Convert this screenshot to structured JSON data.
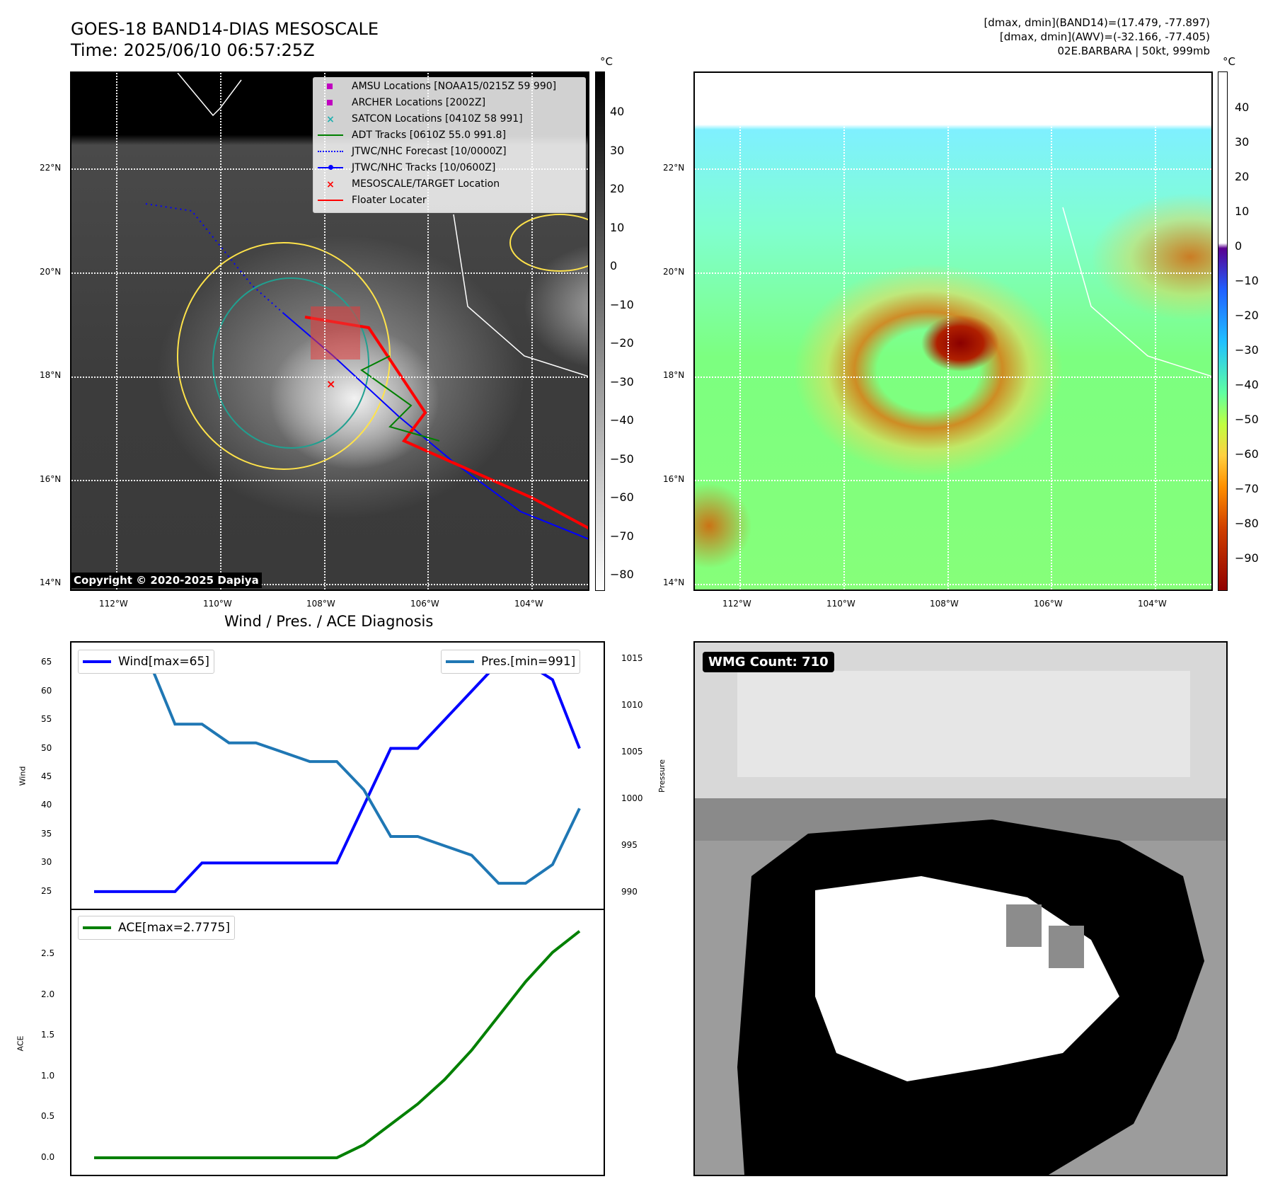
{
  "header": {
    "title_line1": "GOES-18 BAND14-DIAS MESOSCALE",
    "title_line2": "Time: 2025/06/10 06:57:25Z",
    "info_line1": "[dmax, dmin](BAND14)=(17.479, -77.897)",
    "info_line2": "[dmax, dmin](AWV)=(-32.166, -77.405)",
    "info_line3": "02E.BARBARA | 50kt, 999mb"
  },
  "map_ir": {
    "lat_labels": [
      "22°N",
      "20°N",
      "18°N",
      "16°N",
      "14°N"
    ],
    "lon_labels": [
      "112°W",
      "110°W",
      "108°W",
      "106°W",
      "104°W"
    ],
    "colorbar_unit": "°C",
    "colorbar_ticks": [
      "40",
      "30",
      "20",
      "10",
      "0",
      "−10",
      "−20",
      "−30",
      "−40",
      "−50",
      "−60",
      "−70",
      "−80"
    ],
    "copyright": "Copyright © 2020-2025 Dapiya",
    "legend": [
      {
        "label": "AMSU Locations [NOAA15/0215Z 59 990]",
        "color": "#c000c0",
        "symbol": "square"
      },
      {
        "label": "ARCHER Locations [2002Z]",
        "color": "#c000c0",
        "symbol": "square"
      },
      {
        "label": "SATCON Locations [0410Z 58 991]",
        "color": "#20b0b0",
        "symbol": "x"
      },
      {
        "label": "ADT Tracks [0610Z 55.0 991.8]",
        "color": "#008000",
        "symbol": "line"
      },
      {
        "label": "JTWC/NHC Forecast [10/0000Z]",
        "color": "#0000ff",
        "symbol": "dotted"
      },
      {
        "label": "JTWC/NHC Tracks [10/0600Z]",
        "color": "#0000ff",
        "symbol": "line-dot"
      },
      {
        "label": "MESOSCALE/TARGET Location",
        "color": "#ff0000",
        "symbol": "x"
      },
      {
        "label": "Floater Locater",
        "color": "#ff0000",
        "symbol": "line"
      }
    ]
  },
  "map_awv": {
    "lat_labels": [
      "22°N",
      "20°N",
      "18°N",
      "16°N",
      "14°N"
    ],
    "lon_labels": [
      "112°W",
      "110°W",
      "108°W",
      "106°W",
      "104°W"
    ],
    "colorbar_unit": "°C",
    "colorbar_ticks": [
      "40",
      "30",
      "20",
      "10",
      "0",
      "−10",
      "−20",
      "−30",
      "−40",
      "−50",
      "−60",
      "−70",
      "−80",
      "−90"
    ]
  },
  "wmg": {
    "badge": "WMG Count: 710"
  },
  "chart_data": [
    {
      "type": "line",
      "title": "Wind / Pres. / ACE Diagnosis",
      "ylabel": "Wind",
      "ylabel_right": "Pressure",
      "ylim": [
        24,
        66.5
      ],
      "ylim_right": [
        989.5,
        1015.5
      ],
      "yticks": [
        25,
        30,
        35,
        40,
        45,
        50,
        55,
        60,
        65
      ],
      "yticks_right": [
        990,
        995,
        1000,
        1005,
        1010,
        1015
      ],
      "x": [
        0,
        1,
        2,
        3,
        4,
        5,
        6,
        7,
        8,
        9,
        10,
        11,
        12,
        13,
        14,
        15,
        16,
        17,
        18
      ],
      "series": [
        {
          "name": "Wind[max=65]",
          "axis": "left",
          "color": "#0000ff",
          "values": [
            25,
            25,
            25,
            25,
            30,
            30,
            30,
            30,
            30,
            30,
            40,
            50,
            50,
            55,
            60,
            65,
            65,
            62,
            50
          ]
        },
        {
          "name": "Pres.[min=991]",
          "axis": "right",
          "color": "#1f77b4",
          "values": [
            1015,
            1015,
            1015,
            1008,
            1008,
            1006,
            1006,
            1005,
            1004,
            1004,
            1001,
            996,
            996,
            995,
            994,
            991,
            991,
            993,
            999
          ]
        }
      ]
    },
    {
      "type": "line",
      "ylabel": "ACE",
      "ylim": [
        -0.07,
        2.9
      ],
      "yticks": [
        0.0,
        0.5,
        1.0,
        1.5,
        2.0,
        2.5
      ],
      "x": [
        0,
        1,
        2,
        3,
        4,
        5,
        6,
        7,
        8,
        9,
        10,
        11,
        12,
        13,
        14,
        15,
        16,
        17,
        18
      ],
      "series": [
        {
          "name": "ACE[max=2.7775]",
          "color": "#008000",
          "values": [
            0,
            0,
            0,
            0,
            0,
            0,
            0,
            0,
            0,
            0,
            0.16,
            0.41,
            0.66,
            0.96,
            1.32,
            1.74,
            2.16,
            2.52,
            2.78
          ]
        }
      ]
    }
  ]
}
